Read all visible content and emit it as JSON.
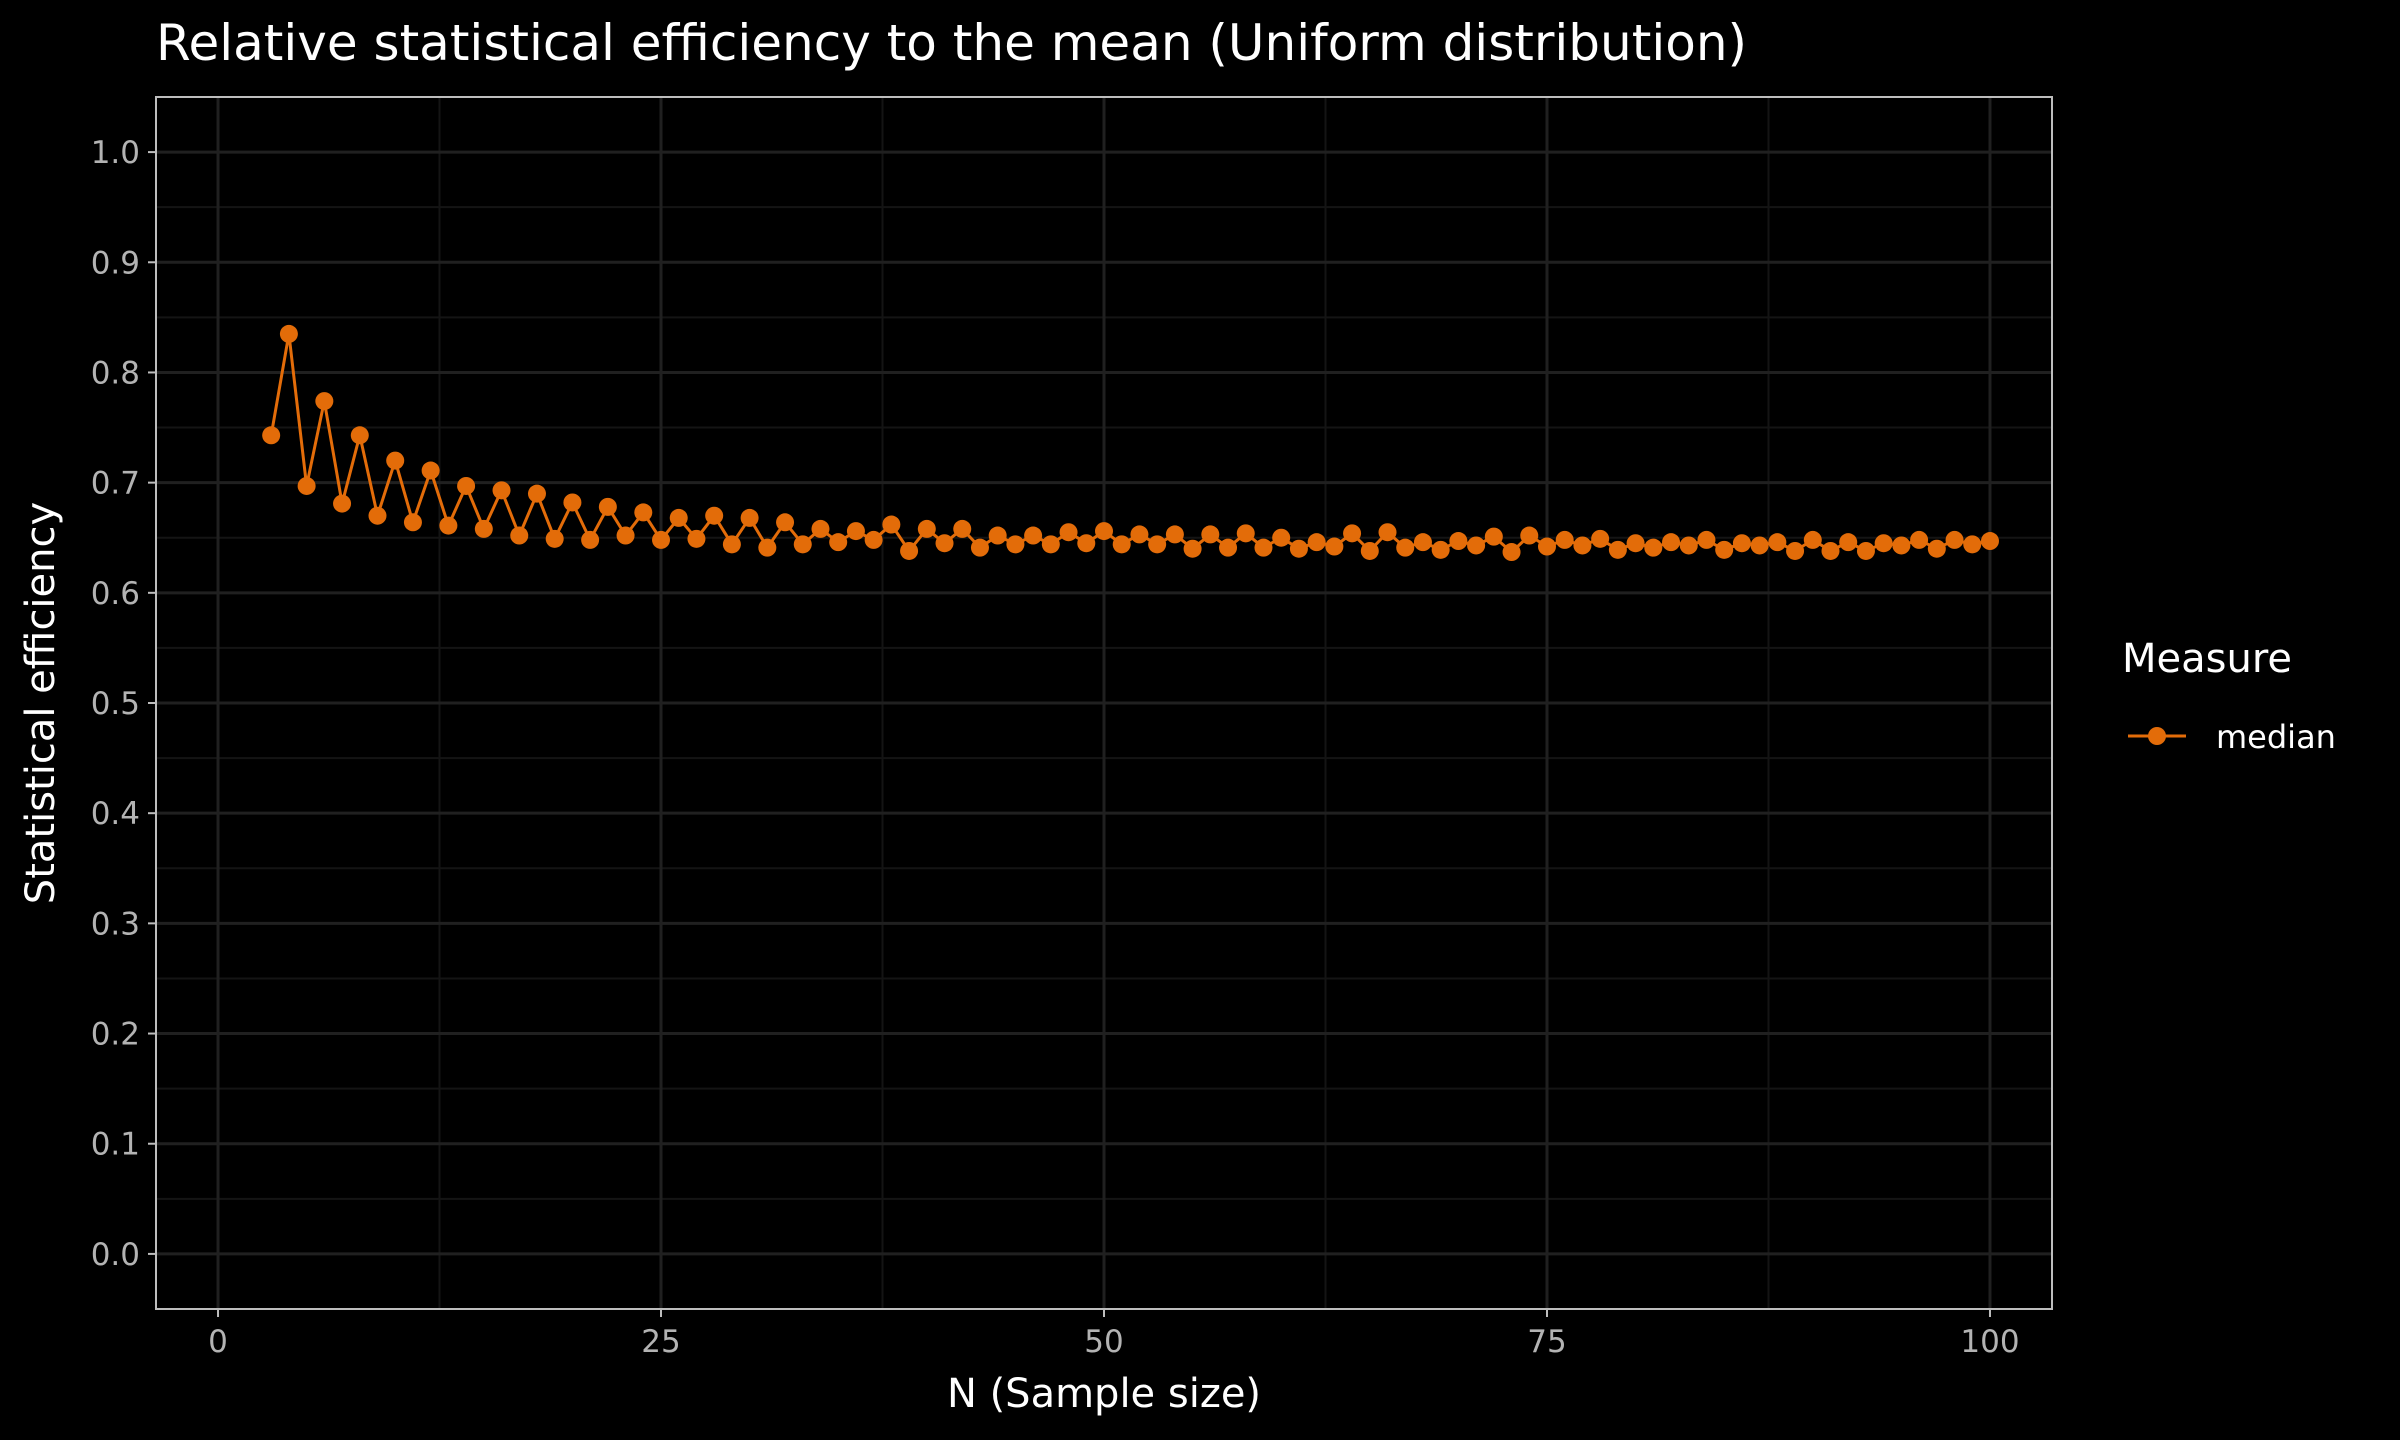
{
  "chart_data": {
    "type": "line",
    "title": "Relative statistical efficiency to the mean (Uniform distribution)",
    "xlabel": "N (Sample size)",
    "ylabel": "Statistical efficiency",
    "xlim": [
      -3.5,
      103.5
    ],
    "ylim": [
      -0.05,
      1.05
    ],
    "x_ticks": [
      0,
      25,
      50,
      75,
      100
    ],
    "x_tick_labels": [
      "0",
      "25",
      "50",
      "75",
      "100"
    ],
    "y_ticks": [
      0.0,
      0.1,
      0.2,
      0.3,
      0.4,
      0.5,
      0.6,
      0.7,
      0.8,
      0.9,
      1.0
    ],
    "y_tick_labels": [
      "0.0",
      "0.1",
      "0.2",
      "0.3",
      "0.4",
      "0.5",
      "0.6",
      "0.7",
      "0.8",
      "0.9",
      "1.0"
    ],
    "grid": true,
    "legend": {
      "title": "Measure",
      "position": "right"
    },
    "series": [
      {
        "name": "median",
        "color": "#E36C09",
        "x": [
          3,
          4,
          5,
          6,
          7,
          8,
          9,
          10,
          11,
          12,
          13,
          14,
          15,
          16,
          17,
          18,
          19,
          20,
          21,
          22,
          23,
          24,
          25,
          26,
          27,
          28,
          29,
          30,
          31,
          32,
          33,
          34,
          35,
          36,
          37,
          38,
          39,
          40,
          41,
          42,
          43,
          44,
          45,
          46,
          47,
          48,
          49,
          50,
          51,
          52,
          53,
          54,
          55,
          56,
          57,
          58,
          59,
          60,
          61,
          62,
          63,
          64,
          65,
          66,
          67,
          68,
          69,
          70,
          71,
          72,
          73,
          74,
          75,
          76,
          77,
          78,
          79,
          80,
          81,
          82,
          83,
          84,
          85,
          86,
          87,
          88,
          89,
          90,
          91,
          92,
          93,
          94,
          95,
          96,
          97,
          98,
          99,
          100
        ],
        "values": [
          0.743,
          0.835,
          0.697,
          0.774,
          0.681,
          0.743,
          0.67,
          0.72,
          0.664,
          0.711,
          0.661,
          0.697,
          0.658,
          0.693,
          0.652,
          0.69,
          0.649,
          0.682,
          0.648,
          0.678,
          0.652,
          0.673,
          0.648,
          0.668,
          0.649,
          0.67,
          0.644,
          0.668,
          0.641,
          0.664,
          0.644,
          0.658,
          0.646,
          0.656,
          0.648,
          0.662,
          0.638,
          0.658,
          0.645,
          0.658,
          0.641,
          0.652,
          0.644,
          0.652,
          0.644,
          0.655,
          0.645,
          0.656,
          0.644,
          0.653,
          0.644,
          0.653,
          0.64,
          0.653,
          0.641,
          0.654,
          0.641,
          0.65,
          0.64,
          0.646,
          0.642,
          0.654,
          0.638,
          0.655,
          0.641,
          0.646,
          0.639,
          0.647,
          0.643,
          0.651,
          0.637,
          0.652,
          0.642,
          0.648,
          0.643,
          0.649,
          0.639,
          0.645,
          0.641,
          0.646,
          0.643,
          0.648,
          0.639,
          0.645,
          0.643,
          0.646,
          0.638,
          0.648,
          0.638,
          0.646,
          0.638,
          0.645,
          0.643,
          0.648,
          0.64,
          0.648,
          0.644,
          0.647
        ]
      }
    ]
  }
}
